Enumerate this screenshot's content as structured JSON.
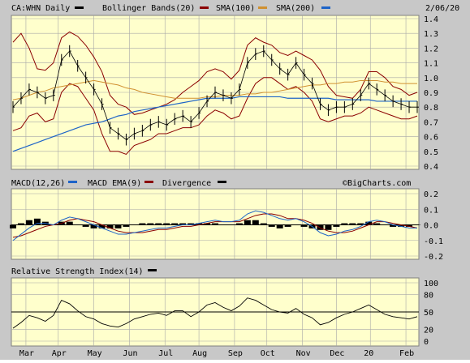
{
  "chart_data": [
    {
      "type": "line",
      "panel": "price",
      "legend": [
        {
          "label": "CA:WHN Daily",
          "color": "#000000"
        },
        {
          "label": "Bollinger Bands(20)",
          "color": "#8b0000"
        },
        {
          "label": "SMA(100)",
          "color": "#8b0000"
        },
        {
          "label": "SMA(200)",
          "color": "#d09030"
        },
        {
          "label": "",
          "color": "#1e64c8"
        }
      ],
      "legend_extra_marker_color": "#1e64c8",
      "date_label": "2/06/20",
      "ylim": [
        0.4,
        1.4
      ],
      "yticks": [
        "0.4",
        "0.5",
        "0.6",
        "0.7",
        "0.8",
        "0.9",
        "1.0",
        "1.1",
        "1.2",
        "1.3",
        "1.4"
      ],
      "x": [
        0,
        5,
        10,
        15,
        20,
        25,
        30,
        35,
        40,
        45,
        50,
        55,
        60,
        65,
        70,
        75,
        80,
        85,
        90,
        95,
        100,
        105,
        110,
        115,
        120,
        125,
        130,
        135,
        140,
        145,
        150,
        155,
        160,
        165,
        170,
        175,
        180,
        185,
        190,
        195,
        200,
        205,
        210,
        215,
        220,
        225,
        230,
        235,
        240,
        245,
        250
      ],
      "close": [
        0.8,
        0.86,
        0.92,
        0.9,
        0.86,
        0.88,
        1.12,
        1.18,
        1.08,
        1.0,
        0.92,
        0.82,
        0.66,
        0.62,
        0.58,
        0.62,
        0.64,
        0.68,
        0.7,
        0.68,
        0.72,
        0.74,
        0.7,
        0.76,
        0.84,
        0.9,
        0.88,
        0.86,
        0.92,
        1.1,
        1.16,
        1.18,
        1.12,
        1.06,
        1.02,
        1.1,
        1.02,
        0.96,
        0.82,
        0.78,
        0.8,
        0.8,
        0.82,
        0.88,
        0.96,
        0.92,
        0.88,
        0.84,
        0.82,
        0.8,
        0.8
      ],
      "sma100": [
        0.62,
        0.64,
        0.66,
        0.69,
        0.71,
        0.73,
        0.75,
        0.76,
        0.77,
        0.78,
        0.79,
        0.8,
        0.81,
        0.82,
        0.82,
        0.83,
        0.84,
        0.84,
        0.84,
        0.85,
        0.85,
        0.86,
        0.86,
        0.87,
        0.87,
        0.88,
        0.88,
        0.87,
        0.87,
        0.86,
        0.85,
        0.85,
        0.84,
        0.83,
        0.82,
        0.81,
        0.8,
        0.79,
        0.79,
        0.79,
        0.8,
        0.81,
        0.82,
        0.83,
        0.84,
        0.85,
        0.86,
        0.86,
        0.86,
        0.86,
        0.86
      ],
      "sma200": [
        0.85,
        0.86,
        0.88,
        0.9,
        0.91,
        0.93,
        0.94,
        0.95,
        0.96,
        0.97,
        0.98,
        0.97,
        0.96,
        0.95,
        0.93,
        0.92,
        0.9,
        0.89,
        0.88,
        0.87,
        0.86,
        0.86,
        0.86,
        0.86,
        0.87,
        0.87,
        0.88,
        0.88,
        0.88,
        0.89,
        0.89,
        0.9,
        0.9,
        0.91,
        0.92,
        0.93,
        0.94,
        0.95,
        0.95,
        0.96,
        0.96,
        0.97,
        0.97,
        0.98,
        0.98,
        0.98,
        0.97,
        0.97,
        0.96,
        0.96,
        0.96
      ],
      "trend": [
        0.5,
        0.52,
        0.54,
        0.56,
        0.58,
        0.6,
        0.62,
        0.64,
        0.66,
        0.68,
        0.69,
        0.7,
        0.72,
        0.74,
        0.75,
        0.77,
        0.78,
        0.79,
        0.8,
        0.81,
        0.82,
        0.83,
        0.84,
        0.85,
        0.86,
        0.86,
        0.86,
        0.86,
        0.87,
        0.87,
        0.87,
        0.87,
        0.87,
        0.87,
        0.86,
        0.86,
        0.86,
        0.86,
        0.86,
        0.86,
        0.85,
        0.85,
        0.85,
        0.85,
        0.85,
        0.84,
        0.84,
        0.84,
        0.84,
        0.84,
        0.84
      ],
      "upper": [
        1.24,
        1.3,
        1.2,
        1.06,
        1.05,
        1.1,
        1.27,
        1.31,
        1.28,
        1.22,
        1.14,
        1.04,
        0.88,
        0.82,
        0.8,
        0.75,
        0.76,
        0.78,
        0.8,
        0.82,
        0.85,
        0.9,
        0.94,
        0.98,
        1.04,
        1.06,
        1.04,
        0.99,
        1.05,
        1.22,
        1.27,
        1.24,
        1.22,
        1.17,
        1.15,
        1.18,
        1.15,
        1.12,
        1.05,
        0.94,
        0.88,
        0.87,
        0.86,
        0.92,
        1.04,
        1.04,
        1.0,
        0.94,
        0.92,
        0.88,
        0.9
      ],
      "lower": [
        0.64,
        0.66,
        0.74,
        0.76,
        0.7,
        0.72,
        0.9,
        0.96,
        0.94,
        0.86,
        0.78,
        0.62,
        0.5,
        0.5,
        0.48,
        0.54,
        0.56,
        0.58,
        0.62,
        0.62,
        0.64,
        0.66,
        0.66,
        0.68,
        0.74,
        0.78,
        0.76,
        0.72,
        0.74,
        0.86,
        0.96,
        1.0,
        1.0,
        0.96,
        0.92,
        0.94,
        0.9,
        0.84,
        0.72,
        0.7,
        0.72,
        0.74,
        0.74,
        0.76,
        0.8,
        0.78,
        0.76,
        0.74,
        0.72,
        0.72,
        0.74
      ]
    },
    {
      "type": "line",
      "panel": "macd",
      "legend": [
        {
          "label": "MACD(12,26)",
          "color": "#1e64c8"
        },
        {
          "label": "MACD EMA(9)",
          "color": "#8b0000"
        },
        {
          "label": "Divergence",
          "color": "#000000"
        }
      ],
      "watermark": "©BigCharts.com",
      "ylim": [
        -0.2,
        0.2
      ],
      "yticks": [
        "0.2",
        "0.1",
        "0.0",
        "-0.1",
        "-0.2"
      ],
      "macd": [
        -0.1,
        -0.06,
        -0.02,
        0.01,
        0.01,
        0.0,
        0.03,
        0.05,
        0.04,
        0.02,
        0.0,
        -0.02,
        -0.04,
        -0.06,
        -0.06,
        -0.05,
        -0.04,
        -0.03,
        -0.02,
        -0.02,
        -0.01,
        0.0,
        0.0,
        0.01,
        0.02,
        0.03,
        0.02,
        0.02,
        0.03,
        0.07,
        0.09,
        0.08,
        0.06,
        0.04,
        0.03,
        0.04,
        0.02,
        -0.01,
        -0.05,
        -0.07,
        -0.06,
        -0.04,
        -0.03,
        -0.01,
        0.02,
        0.03,
        0.02,
        0.0,
        -0.01,
        -0.02,
        -0.02
      ],
      "signal": [
        -0.08,
        -0.07,
        -0.05,
        -0.03,
        -0.01,
        0.0,
        0.01,
        0.03,
        0.04,
        0.03,
        0.02,
        0.0,
        -0.02,
        -0.04,
        -0.05,
        -0.05,
        -0.05,
        -0.04,
        -0.03,
        -0.03,
        -0.02,
        -0.01,
        -0.01,
        0.0,
        0.01,
        0.02,
        0.02,
        0.02,
        0.02,
        0.04,
        0.06,
        0.07,
        0.07,
        0.06,
        0.04,
        0.04,
        0.03,
        0.01,
        -0.02,
        -0.04,
        -0.05,
        -0.05,
        -0.04,
        -0.02,
        0.0,
        0.02,
        0.02,
        0.01,
        0.0,
        -0.01,
        -0.02
      ]
    },
    {
      "type": "line",
      "panel": "rsi",
      "legend": [
        {
          "label": "Relative Strength Index(14)",
          "color": "#000000"
        }
      ],
      "ylim": [
        0,
        100
      ],
      "yticks": [
        "100",
        "80",
        "50",
        "20",
        "0"
      ],
      "reference_line": 50,
      "rsi": [
        22,
        32,
        44,
        40,
        34,
        44,
        70,
        64,
        52,
        42,
        38,
        30,
        26,
        24,
        30,
        38,
        42,
        46,
        48,
        44,
        52,
        52,
        42,
        50,
        62,
        66,
        58,
        52,
        60,
        74,
        70,
        62,
        54,
        50,
        48,
        56,
        46,
        40,
        28,
        32,
        40,
        46,
        50,
        56,
        62,
        54,
        46,
        42,
        40,
        38,
        42
      ]
    }
  ],
  "xaxis": {
    "months": [
      {
        "label": "Mar",
        "x": 8
      },
      {
        "label": "Apr",
        "x": 28
      },
      {
        "label": "May",
        "x": 50
      },
      {
        "label": "Jun",
        "x": 72
      },
      {
        "label": "Jul",
        "x": 94
      },
      {
        "label": "Aug",
        "x": 115
      },
      {
        "label": "Sep",
        "x": 137
      },
      {
        "label": "Oct",
        "x": 157
      },
      {
        "label": "Nov",
        "x": 179
      },
      {
        "label": "Dec",
        "x": 200
      },
      {
        "label": "20",
        "x": 221
      },
      {
        "label": "Feb",
        "x": 243
      }
    ]
  }
}
